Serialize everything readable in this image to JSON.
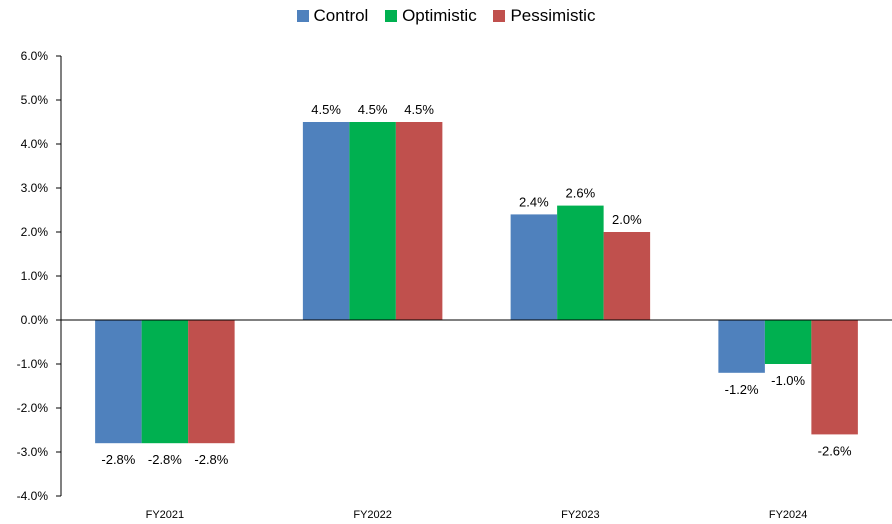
{
  "chart_data": {
    "type": "bar",
    "categories": [
      "FY2021",
      "FY2022",
      "FY2023",
      "FY2024"
    ],
    "series": [
      {
        "name": "Control",
        "color": "#4f81bd",
        "values": [
          -2.8,
          4.5,
          2.4,
          -1.2
        ],
        "labels": [
          "-2.8%",
          "4.5%",
          "2.4%",
          "-1.2%"
        ]
      },
      {
        "name": "Optimistic",
        "color": "#00b050",
        "values": [
          -2.8,
          4.5,
          2.6,
          -1.0
        ],
        "labels": [
          "-2.8%",
          "4.5%",
          "2.6%",
          "-1.0%"
        ]
      },
      {
        "name": "Pessimistic",
        "color": "#c0504d",
        "values": [
          -2.8,
          4.5,
          2.0,
          -2.6
        ],
        "labels": [
          "-2.8%",
          "4.5%",
          "2.0%",
          "-2.6%"
        ]
      }
    ],
    "ylim": [
      -4.0,
      6.0
    ],
    "yticks": [
      6.0,
      5.0,
      4.0,
      3.0,
      2.0,
      1.0,
      0.0,
      -1.0,
      -2.0,
      -3.0,
      -4.0
    ],
    "ytick_labels": [
      "6.0%",
      "5.0%",
      "4.0%",
      "3.0%",
      "2.0%",
      "1.0%",
      "0.0%",
      "-1.0%",
      "-2.0%",
      "-3.0%",
      "-4.0%"
    ],
    "grid": false,
    "legend_position": "top"
  }
}
